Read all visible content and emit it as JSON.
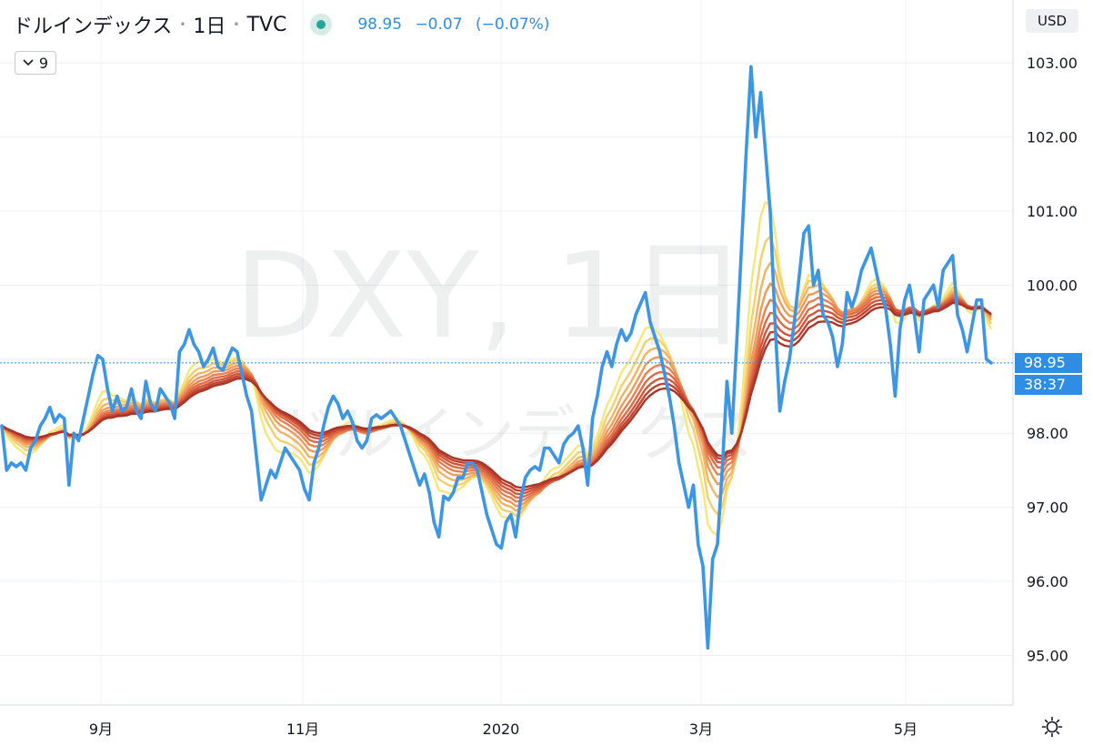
{
  "header": {
    "symbol_name": "ドルインデックス",
    "interval": "1日",
    "exchange": "TVC",
    "status_color": "#26a69a",
    "last": "98.95",
    "change": "−0.07",
    "change_pct": "(−0.07%)"
  },
  "indicator_button": {
    "icon": "chevron-down-icon",
    "label": "9"
  },
  "price_axis": {
    "currency": "USD"
  },
  "watermark": {
    "main": "DXY, 1日",
    "sub": "ドルインデックス"
  },
  "price_tag": {
    "price": "98.95",
    "countdown": "38:37"
  },
  "settings_icon": "gear-icon",
  "colors": {
    "price_line": "#3d95e6",
    "ribbon": [
      "#f5e77a",
      "#f5cf6e",
      "#f2b464",
      "#ee9a5a",
      "#e88150",
      "#df6a46",
      "#d2553b",
      "#bf4330",
      "#a83526"
    ]
  },
  "chart_data": {
    "type": "line",
    "x_ticks": [
      "9月",
      "11月",
      "2020",
      "3月",
      "5月"
    ],
    "y_ticks": [
      "103.00",
      "102.00",
      "101.00",
      "100.00",
      "99.00",
      "98.00",
      "97.00",
      "96.00",
      "95.00"
    ],
    "ylim": [
      94.33,
      103.85
    ],
    "grid": true,
    "series": [
      {
        "role": "price",
        "values": [
          98.1,
          97.5,
          97.6,
          97.55,
          97.6,
          97.5,
          97.8,
          97.9,
          98.1,
          98.2,
          98.35,
          98.15,
          98.25,
          98.2,
          97.3,
          98.0,
          97.9,
          98.2,
          98.5,
          98.8,
          99.05,
          99.0,
          98.6,
          98.3,
          98.5,
          98.3,
          98.35,
          98.6,
          98.3,
          98.2,
          98.7,
          98.4,
          98.3,
          98.6,
          98.5,
          98.4,
          98.2,
          99.1,
          99.2,
          99.4,
          99.2,
          99.1,
          98.9,
          99.0,
          99.15,
          98.9,
          98.85,
          99.0,
          99.15,
          99.1,
          98.8,
          98.5,
          98.3,
          97.7,
          97.1,
          97.3,
          97.5,
          97.4,
          97.6,
          97.8,
          97.7,
          97.6,
          97.5,
          97.25,
          97.1,
          97.6,
          97.8,
          98.1,
          98.35,
          98.5,
          98.4,
          98.2,
          98.3,
          98.15,
          97.9,
          97.8,
          97.9,
          98.2,
          98.25,
          98.2,
          98.25,
          98.3,
          98.2,
          98.1,
          97.9,
          97.7,
          97.5,
          97.3,
          97.45,
          97.2,
          96.8,
          96.6,
          97.15,
          97.1,
          97.2,
          97.4,
          97.4,
          97.6,
          97.6,
          97.5,
          97.2,
          96.9,
          96.7,
          96.5,
          96.45,
          96.8,
          96.9,
          96.6,
          97.1,
          97.4,
          97.5,
          97.55,
          97.5,
          97.8,
          97.8,
          97.7,
          97.6,
          97.85,
          97.95,
          98.0,
          98.1,
          97.8,
          97.3,
          98.2,
          98.5,
          98.9,
          99.1,
          98.9,
          99.2,
          99.4,
          99.25,
          99.35,
          99.6,
          99.75,
          99.9,
          99.5,
          99.3,
          99.1,
          98.8,
          98.5,
          98.1,
          97.6,
          97.3,
          97.0,
          97.3,
          96.5,
          96.2,
          95.1,
          96.3,
          96.5,
          97.5,
          98.7,
          98.0,
          99.2,
          100.5,
          101.8,
          102.95,
          102.0,
          102.6,
          101.8,
          101.0,
          99.5,
          98.3,
          98.7,
          99.0,
          99.5,
          100.1,
          100.7,
          100.8,
          100.0,
          100.2,
          99.6,
          99.5,
          99.3,
          98.9,
          99.2,
          99.9,
          99.7,
          99.9,
          100.2,
          100.35,
          100.5,
          100.2,
          99.9,
          99.7,
          99.2,
          98.5,
          99.4,
          99.8,
          100.0,
          99.6,
          99.1,
          99.8,
          99.9,
          100.0,
          99.7,
          100.2,
          100.3,
          100.4,
          99.6,
          99.4,
          99.1,
          99.45,
          99.8,
          99.8,
          99.0,
          98.95
        ]
      }
    ],
    "ribbon_periods": [
      8,
      11,
      14,
      17,
      20,
      23,
      26,
      29,
      32
    ]
  }
}
